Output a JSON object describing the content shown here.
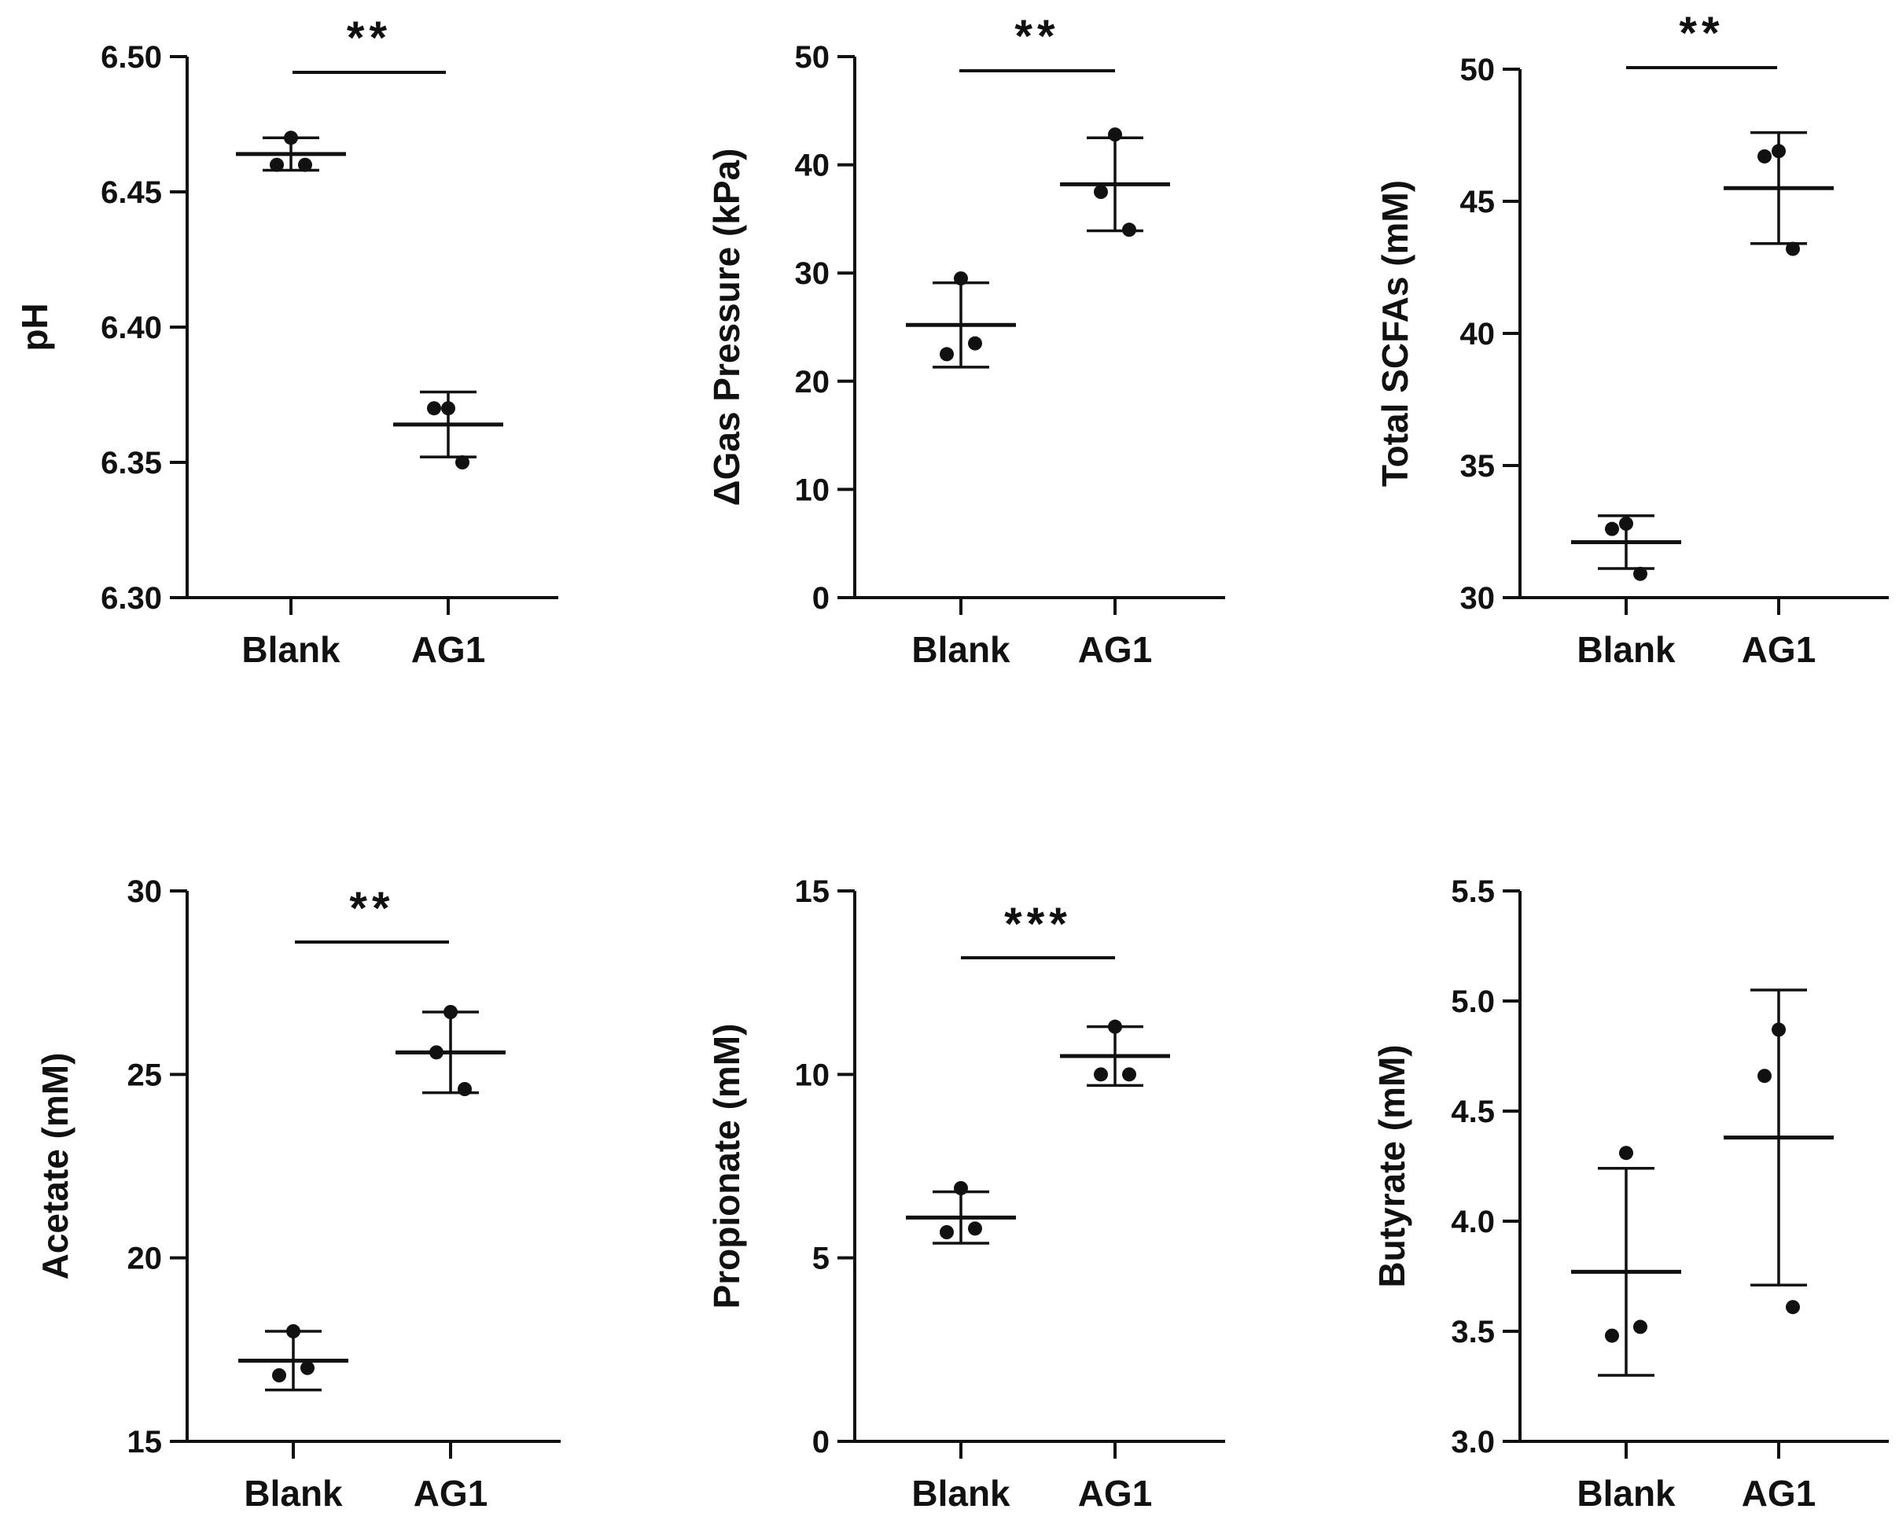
{
  "figure": {
    "colors": {
      "ink": "#111111",
      "background": "#ffffff"
    }
  },
  "chart_data": [
    {
      "type": "scatter",
      "subtype": "dot-plot with mean and SD error bars",
      "title": "",
      "xlabel": "",
      "ylabel": "pH",
      "categories": [
        "Blank",
        "AG1"
      ],
      "ylim": [
        6.3,
        6.5
      ],
      "yticks": [
        6.3,
        6.35,
        6.4,
        6.45,
        6.5
      ],
      "ytick_labels": [
        "6.30",
        "6.35",
        "6.40",
        "6.45",
        "6.50"
      ],
      "points": [
        [
          6.47,
          6.46,
          6.46
        ],
        [
          6.37,
          6.37,
          6.35
        ]
      ],
      "mean": [
        6.464,
        6.364
      ],
      "sd": [
        0.006,
        0.012
      ],
      "significance": "**",
      "grid": false
    },
    {
      "type": "scatter",
      "subtype": "dot-plot with mean and SD error bars",
      "title": "",
      "xlabel": "",
      "ylabel": "ΔGas Pressure (kPa)",
      "categories": [
        "Blank",
        "AG1"
      ],
      "ylim": [
        0,
        50
      ],
      "yticks": [
        0,
        10,
        20,
        30,
        40,
        50
      ],
      "ytick_labels": [
        "0",
        "10",
        "20",
        "30",
        "40",
        "50"
      ],
      "points": [
        [
          29.5,
          22.5,
          23.5
        ],
        [
          42.8,
          37.5,
          34.0
        ]
      ],
      "mean": [
        25.2,
        38.2
      ],
      "sd": [
        3.9,
        4.3
      ],
      "significance": "**",
      "grid": false
    },
    {
      "type": "scatter",
      "subtype": "dot-plot with mean and SD error bars",
      "title": "",
      "xlabel": "",
      "ylabel": "Total SCFAs (mM)",
      "categories": [
        "Blank",
        "AG1"
      ],
      "ylim": [
        30,
        50
      ],
      "yticks": [
        30,
        35,
        40,
        45,
        50
      ],
      "ytick_labels": [
        "30",
        "35",
        "40",
        "45",
        "50"
      ],
      "points": [
        [
          32.8,
          32.6,
          30.9
        ],
        [
          46.9,
          46.7,
          43.2
        ]
      ],
      "mean": [
        32.1,
        45.5
      ],
      "sd": [
        1.0,
        2.1
      ],
      "significance": "**",
      "grid": false
    },
    {
      "type": "scatter",
      "subtype": "dot-plot with mean and SD error bars",
      "title": "",
      "xlabel": "",
      "ylabel": "Acetate (mM)",
      "categories": [
        "Blank",
        "AG1"
      ],
      "ylim": [
        15,
        30
      ],
      "yticks": [
        15,
        20,
        25,
        30
      ],
      "ytick_labels": [
        "15",
        "20",
        "25",
        "30"
      ],
      "points": [
        [
          18.0,
          16.8,
          17.0
        ],
        [
          26.7,
          25.6,
          24.6
        ]
      ],
      "mean": [
        17.2,
        25.6
      ],
      "sd": [
        0.8,
        1.1
      ],
      "significance": "**",
      "grid": false
    },
    {
      "type": "scatter",
      "subtype": "dot-plot with mean and SD error bars",
      "title": "",
      "xlabel": "",
      "ylabel": "Propionate (mM)",
      "categories": [
        "Blank",
        "AG1"
      ],
      "ylim": [
        0,
        15
      ],
      "yticks": [
        0,
        5,
        10,
        15
      ],
      "ytick_labels": [
        "0",
        "5",
        "10",
        "15"
      ],
      "points": [
        [
          6.9,
          5.7,
          5.8
        ],
        [
          11.3,
          10.0,
          10.0
        ]
      ],
      "mean": [
        6.1,
        10.5
      ],
      "sd": [
        0.7,
        0.8
      ],
      "significance": "***",
      "grid": false
    },
    {
      "type": "scatter",
      "subtype": "dot-plot with mean and SD error bars",
      "title": "",
      "xlabel": "",
      "ylabel": "Butyrate (mM)",
      "categories": [
        "Blank",
        "AG1"
      ],
      "ylim": [
        3.0,
        5.5
      ],
      "yticks": [
        3.0,
        3.5,
        4.0,
        4.5,
        5.0,
        5.5
      ],
      "ytick_labels": [
        "3.0",
        "3.5",
        "4.0",
        "4.5",
        "5.0",
        "5.5"
      ],
      "points": [
        [
          4.31,
          3.48,
          3.52
        ],
        [
          4.87,
          4.66,
          3.61
        ]
      ],
      "mean": [
        3.77,
        4.38
      ],
      "sd": [
        0.47,
        0.67
      ],
      "significance": "",
      "grid": false
    }
  ]
}
